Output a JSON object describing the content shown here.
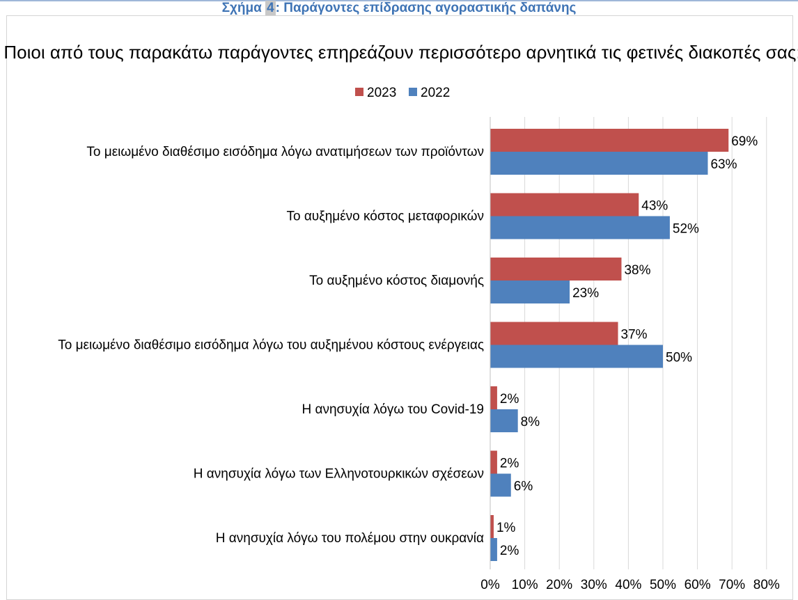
{
  "caption": {
    "prefix": "Σχήμα ",
    "number": "4",
    "text": ": Παράγοντες επίδρασης αγοραστικής δαπάνης"
  },
  "colors": {
    "s2023": "#c0504d",
    "s2022": "#4f81bd",
    "caption": "#3f74b5"
  },
  "chart_data": {
    "type": "bar",
    "orientation": "horizontal",
    "title": "Ποιοι από τους παρακάτω παράγοντες επηρεάζουν περισσότερο αρνητικά τις φετινές διακοπές σας;",
    "legend_position": "top",
    "categories": [
      "Το μειωμένο διαθέσιμο εισόδημα λόγω ανατιμήσεων των προϊόντων",
      "Το αυξημένο κόστος μεταφορικών",
      "Το αυξημένο κόστος διαμονής",
      "Το μειωμένο διαθέσιμο εισόδημα λόγω του αυξημένου κόστους ενέργειας",
      "Η ανησυχία λόγω του Covid-19",
      "Η ανησυχία λόγω των Ελληνοτουρκικών σχέσεων",
      "Η ανησυχία λόγω του πολέμου στην ουκρανία"
    ],
    "series": [
      {
        "name": "2023",
        "values": [
          69,
          43,
          38,
          37,
          2,
          2,
          1
        ],
        "labels": [
          "69%",
          "43%",
          "38%",
          "37%",
          "2%",
          "2%",
          "1%"
        ]
      },
      {
        "name": "2022",
        "values": [
          63,
          52,
          23,
          50,
          8,
          6,
          2
        ],
        "labels": [
          "63%",
          "52%",
          "23%",
          "50%",
          "8%",
          "6%",
          "2%"
        ]
      }
    ],
    "xlim": [
      0,
      80
    ],
    "xticks": [
      "0%",
      "10%",
      "20%",
      "30%",
      "40%",
      "50%",
      "60%",
      "70%",
      "80%"
    ],
    "grid": true
  }
}
